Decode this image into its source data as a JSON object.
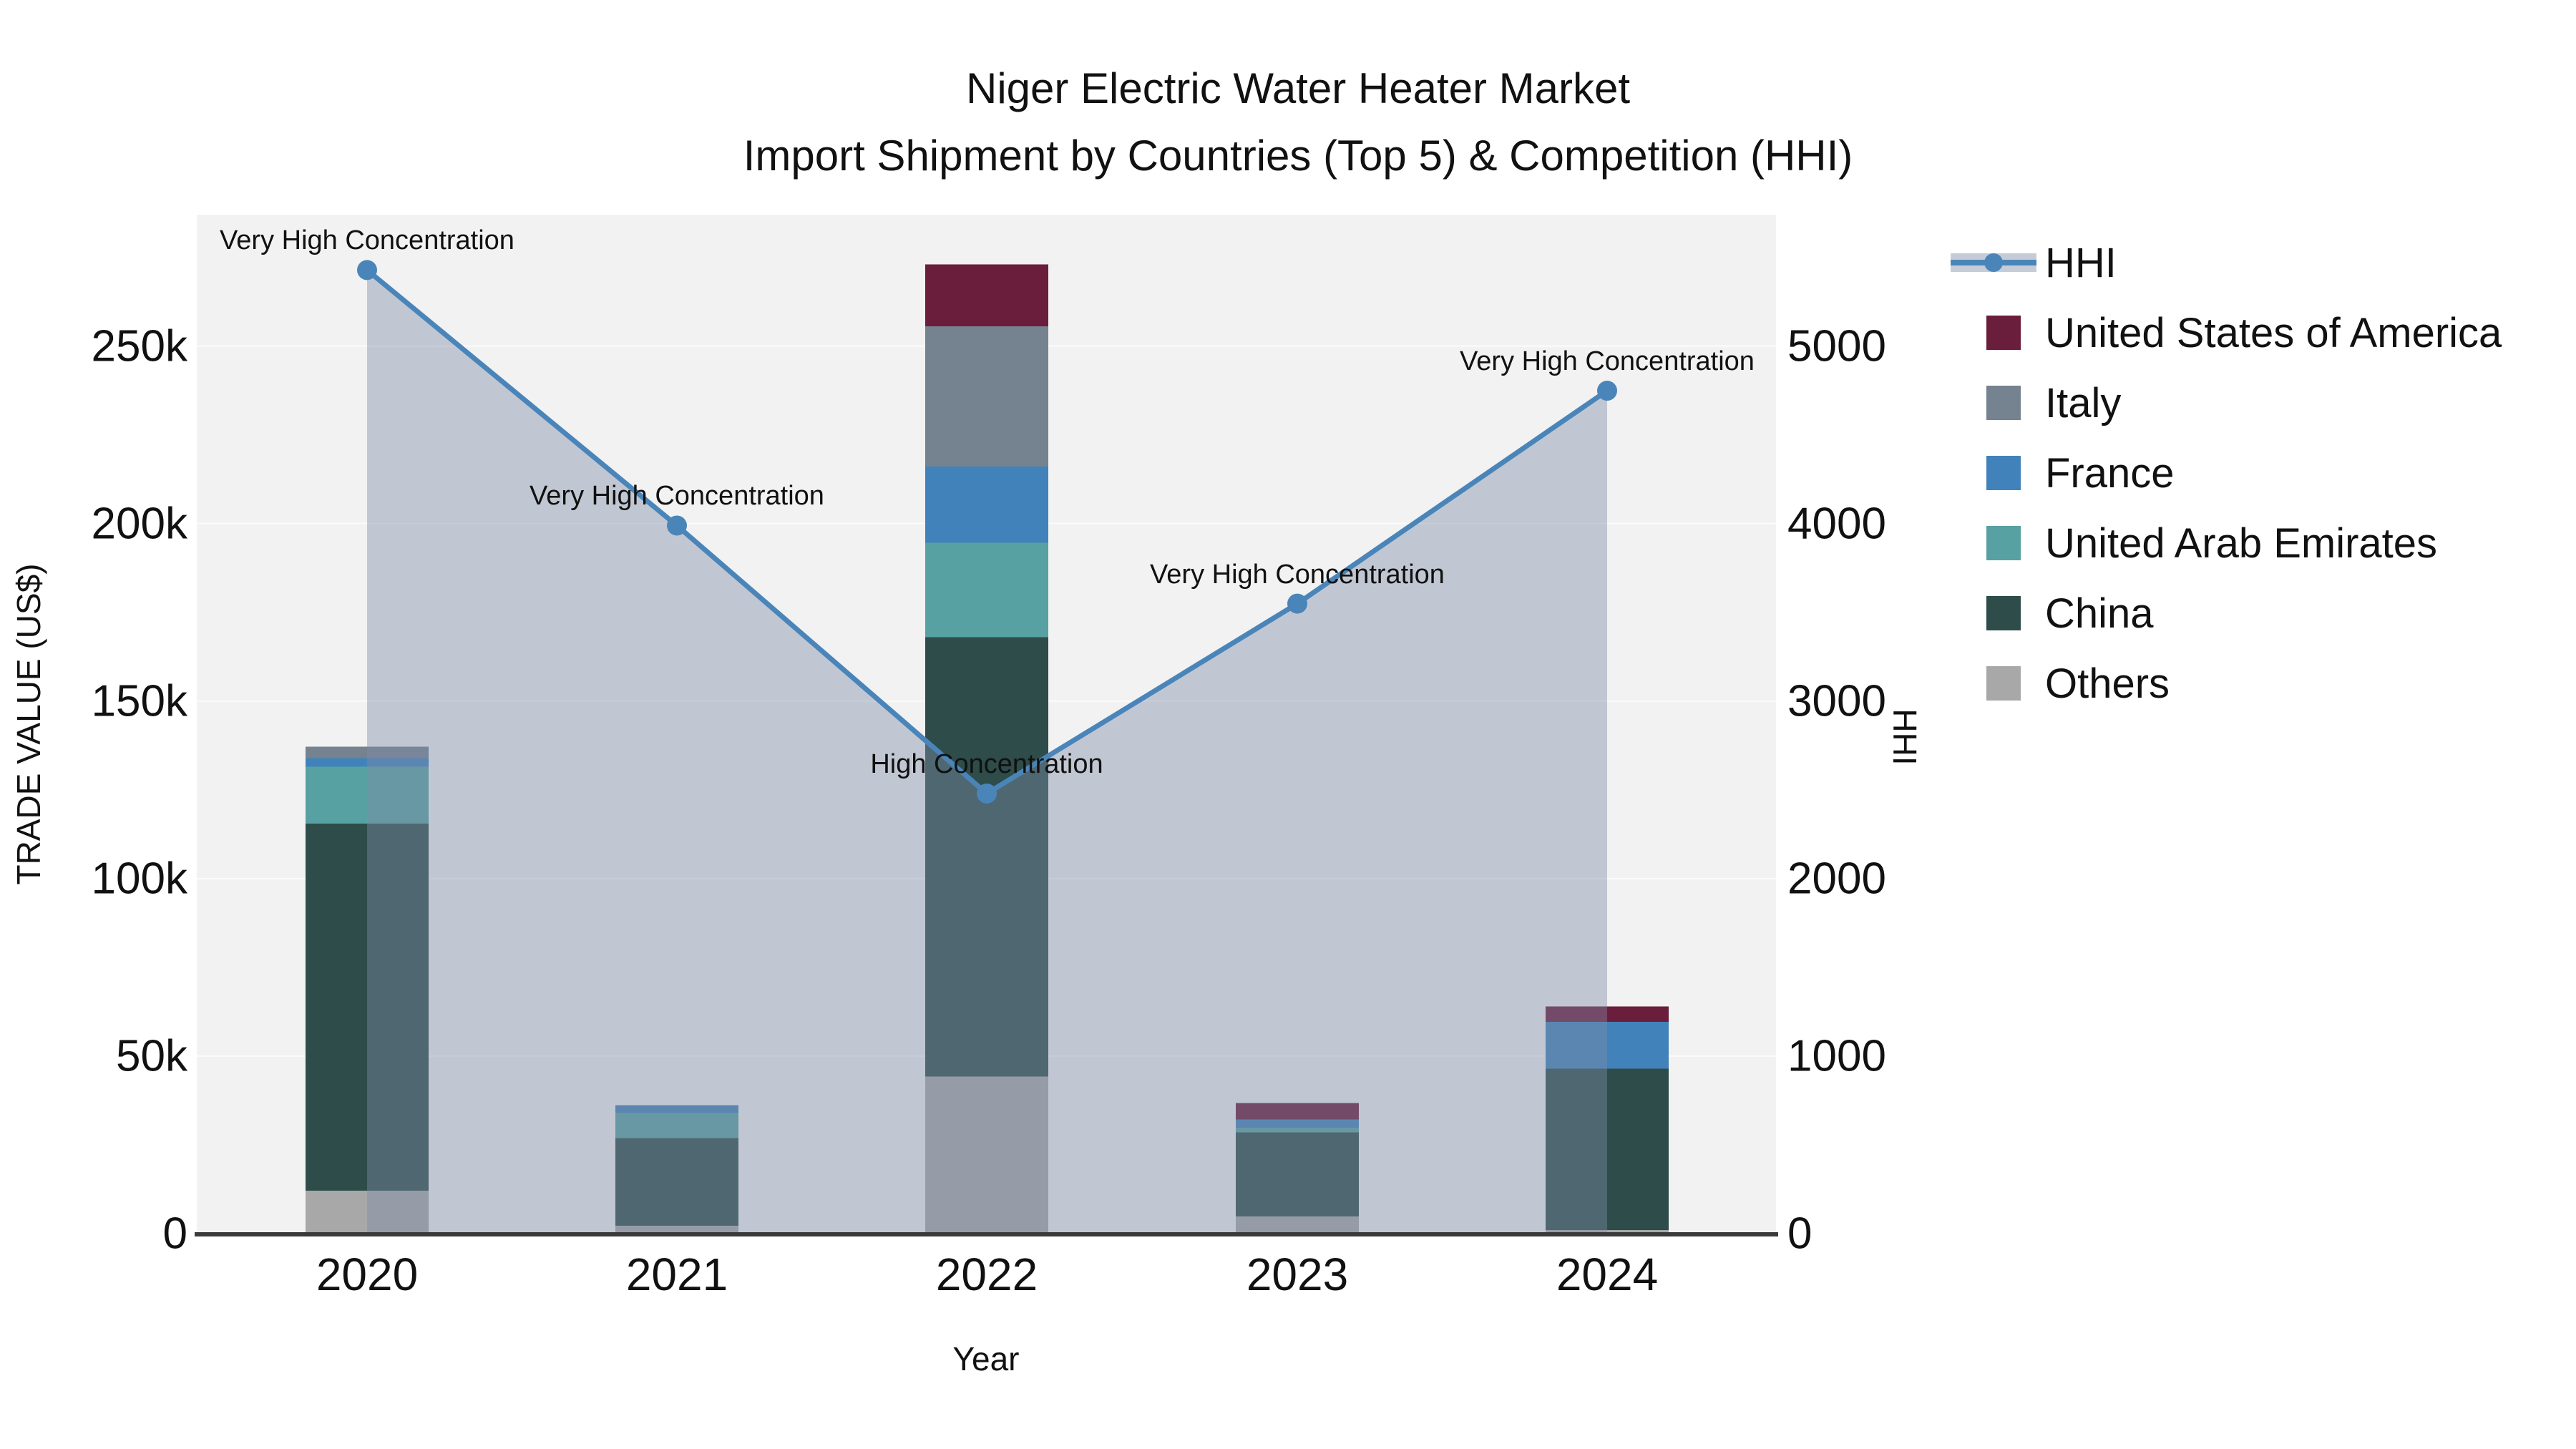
{
  "figure": {
    "title_line1": "Niger Electric Water Heater Market",
    "title_line2": "Import Shipment by Countries (Top 5) & Competition (HHI)",
    "background": "#ffffff",
    "plot_background": "#f2f2f2",
    "gridline_color": "#fbfbfb",
    "axis_line_color": "#3a3a3a"
  },
  "legend": {
    "items": [
      {
        "label": "HHI",
        "swatch": "line",
        "color": "#4a85ba",
        "band_color": "rgba(127,141,167,0.45)"
      },
      {
        "label": "United States of America",
        "swatch": "square",
        "color": "#6b1d3c"
      },
      {
        "label": "Italy",
        "swatch": "square",
        "color": "#75828f"
      },
      {
        "label": "France",
        "swatch": "square",
        "color": "#4282ba"
      },
      {
        "label": "United Arab Emirates",
        "swatch": "square",
        "color": "#58a1a2"
      },
      {
        "label": "China",
        "swatch": "square",
        "color": "#2e4c49"
      },
      {
        "label": "Others",
        "swatch": "square",
        "color": "#a8a8a8"
      }
    ]
  },
  "chart_data": {
    "type": "combo: stacked bar (trade value) + line with area fill (HHI), dual y-axis",
    "title": "Niger Electric Water Heater Market\nImport Shipment by Countries (Top 5) & Competition (HHI)",
    "categories": [
      "2020",
      "2021",
      "2022",
      "2023",
      "2024"
    ],
    "x_label": "Year",
    "grid": true,
    "legend_position": "right",
    "y_left": {
      "label": "TRADE VALUE (US$)",
      "ticks": [
        "0",
        "50k",
        "100k",
        "150k",
        "200k",
        "250k"
      ],
      "tick_values": [
        0,
        50000,
        100000,
        150000,
        200000,
        250000
      ],
      "range": [
        0,
        287000
      ]
    },
    "y_right": {
      "label": "HHI",
      "ticks": [
        "0",
        "1000",
        "2000",
        "3000",
        "4000",
        "5000"
      ],
      "tick_values": [
        0,
        1000,
        2000,
        3000,
        4000,
        5000
      ],
      "range": [
        0,
        5742
      ]
    },
    "stack_order_bottom_to_top": [
      "Others",
      "China",
      "United Arab Emirates",
      "France",
      "Italy",
      "United States of America"
    ],
    "series": [
      {
        "name": "United States of America",
        "color": "#6b1d3c",
        "values": [
          0,
          0,
          17400,
          4700,
          4300
        ]
      },
      {
        "name": "Italy",
        "color": "#75828f",
        "values": [
          3300,
          0,
          39500,
          0,
          0
        ]
      },
      {
        "name": "France",
        "color": "#4282ba",
        "values": [
          2400,
          2100,
          21500,
          2300,
          13200
        ]
      },
      {
        "name": "United Arab Emirates",
        "color": "#58a1a2",
        "values": [
          16000,
          7200,
          26600,
          1300,
          0
        ]
      },
      {
        "name": "China",
        "color": "#2e4c49",
        "values": [
          103400,
          24700,
          123800,
          23700,
          45500
        ]
      },
      {
        "name": "Others",
        "color": "#a8a8a8",
        "values": [
          12100,
          2200,
          44200,
          4800,
          1000
        ]
      }
    ],
    "line_series": {
      "name": "HHI",
      "color": "#4a85ba",
      "area_fill": "rgba(127,141,167,0.42)",
      "values": [
        5430,
        3990,
        2480,
        3550,
        4750
      ],
      "annotations": [
        "Very High Concentration",
        "Very High Concentration",
        "High Concentration",
        "Very High Concentration",
        "Very High Concentration"
      ]
    }
  }
}
